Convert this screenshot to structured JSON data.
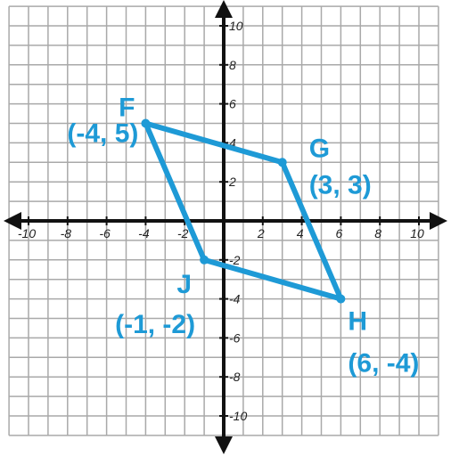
{
  "colors": {
    "shape": "#1e9ad6",
    "axis": "#111111",
    "grid": "#a9a9a9",
    "labels": "#1e9ad6"
  },
  "axes": {
    "x_range": [
      -10,
      10
    ],
    "y_range": [
      -10,
      10
    ],
    "grid_step": 1,
    "x_ticks": [
      {
        "value": -10,
        "label": "-10"
      },
      {
        "value": -8,
        "label": "-8"
      },
      {
        "value": -6,
        "label": "-6"
      },
      {
        "value": -4,
        "label": "-4"
      },
      {
        "value": -2,
        "label": "-2"
      },
      {
        "value": 2,
        "label": "2"
      },
      {
        "value": 4,
        "label": "4"
      },
      {
        "value": 6,
        "label": "6"
      },
      {
        "value": 8,
        "label": "8"
      },
      {
        "value": 10,
        "label": "10"
      }
    ],
    "y_ticks": [
      {
        "value": 10,
        "label": "10"
      },
      {
        "value": 8,
        "label": "8"
      },
      {
        "value": 6,
        "label": "6"
      },
      {
        "value": 4,
        "label": "4"
      },
      {
        "value": 2,
        "label": "2"
      },
      {
        "value": -2,
        "label": "-2"
      },
      {
        "value": -4,
        "label": "-4"
      },
      {
        "value": -6,
        "label": "-6"
      },
      {
        "value": -8,
        "label": "-8"
      },
      {
        "value": -10,
        "label": "-10"
      }
    ]
  },
  "vertices": [
    {
      "name": "F",
      "x": -4,
      "y": 5,
      "coord_label": "(-4, 5)"
    },
    {
      "name": "G",
      "x": 3,
      "y": 3,
      "coord_label": "(3, 3)"
    },
    {
      "name": "H",
      "x": 6,
      "y": -4,
      "coord_label": "(6, -4)"
    },
    {
      "name": "J",
      "x": -1,
      "y": -2,
      "coord_label": "(-1, -2)"
    }
  ]
}
